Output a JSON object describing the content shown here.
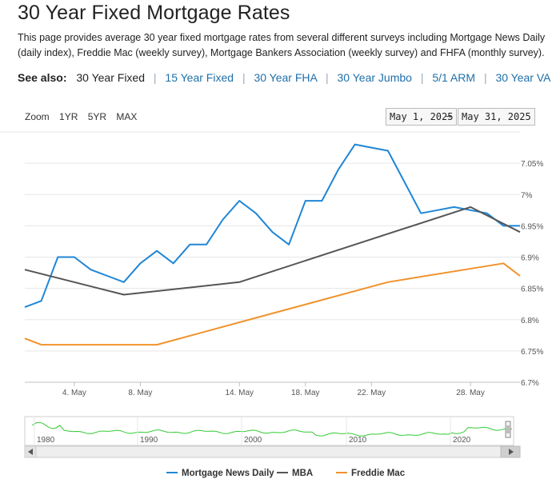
{
  "page": {
    "title": "30 Year Fixed Mortgage Rates",
    "intro": "This page provides average 30 year fixed mortgage rates from several different surveys including Mortgage News Daily (daily index), Freddie Mac (weekly survey), Mortgage Bankers Association (weekly survey) and FHFA (monthly survey)."
  },
  "see_also": {
    "label": "See also:",
    "current": "30 Year Fixed",
    "links": [
      "15 Year Fixed",
      "30 Year FHA",
      "30 Year Jumbo",
      "5/1 ARM",
      "30 Year VA"
    ]
  },
  "zoom": {
    "label": "Zoom",
    "options": [
      "1YR",
      "5YR",
      "MAX"
    ]
  },
  "range": {
    "from": "May 1, 2025",
    "arrow": "→",
    "to": "May 31, 2025"
  },
  "colors": {
    "mnd": "#1f86d6",
    "mba": "#555555",
    "freddie": "#f0922b",
    "navigator": "#33cc33"
  },
  "chart_data": {
    "type": "line",
    "title": "",
    "xlabel": "",
    "ylabel": "",
    "x_unit": "day of May 2025",
    "xlim": [
      1,
      31
    ],
    "ylim": [
      6.7,
      7.1
    ],
    "y_ticks": [
      6.7,
      6.75,
      6.8,
      6.85,
      6.9,
      6.95,
      7.0,
      7.05
    ],
    "y_tick_labels": [
      "6.7%",
      "6.75%",
      "6.8%",
      "6.85%",
      "6.9%",
      "6.95%",
      "7%",
      "7.05%"
    ],
    "x_ticks": [
      4,
      8,
      14,
      18,
      22,
      28
    ],
    "x_tick_labels": [
      "4. May",
      "8. May",
      "14. May",
      "18. May",
      "22. May",
      "28. May"
    ],
    "grid": "horizontal",
    "legend_position": "bottom",
    "series": [
      {
        "name": "Mortgage News Daily",
        "x": [
          1,
          2,
          3,
          4,
          5,
          6,
          7,
          8,
          9,
          10,
          11,
          12,
          13,
          14,
          15,
          16,
          17,
          18,
          19,
          20,
          21,
          22,
          23,
          24,
          25,
          26,
          27,
          28,
          29,
          30,
          31
        ],
        "y": [
          6.82,
          6.83,
          6.9,
          6.9,
          6.88,
          6.87,
          6.86,
          6.89,
          6.91,
          6.89,
          6.92,
          6.92,
          6.96,
          6.99,
          6.97,
          6.94,
          6.92,
          6.99,
          6.99,
          7.04,
          7.08,
          7.075,
          7.07,
          7.02,
          6.97,
          6.975,
          6.98,
          6.975,
          6.97,
          6.95,
          6.95
        ]
      },
      {
        "name": "MBA",
        "x": [
          1,
          7,
          14,
          21,
          28,
          31
        ],
        "y": [
          6.88,
          6.84,
          6.86,
          6.92,
          6.98,
          6.94
        ]
      },
      {
        "name": "Freddie Mac",
        "x": [
          1,
          2,
          9,
          16,
          23,
          30,
          31
        ],
        "y": [
          6.77,
          6.76,
          6.76,
          6.81,
          6.86,
          6.89,
          6.87
        ]
      }
    ],
    "navigator": {
      "x_tick_labels": [
        "1980",
        "1990",
        "2000",
        "2010",
        "2020"
      ]
    }
  }
}
